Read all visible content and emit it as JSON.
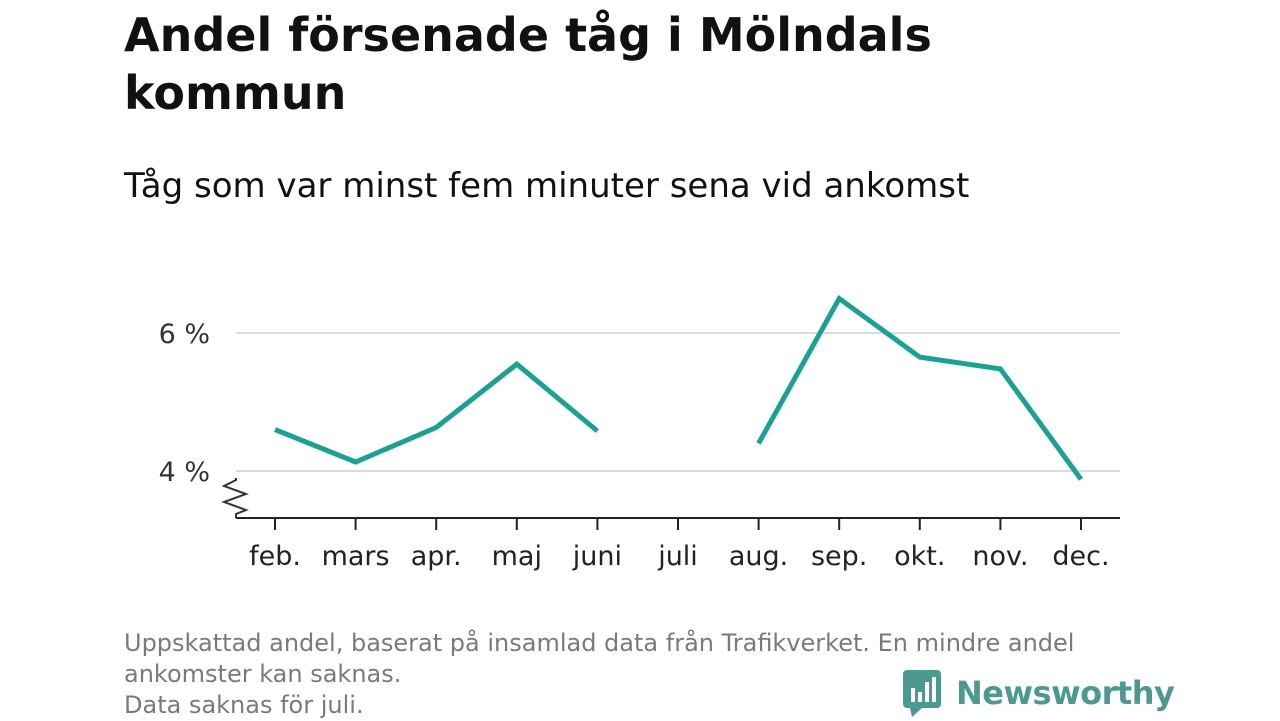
{
  "header": {
    "title": "Andel försenade tåg i Mölndals kommun",
    "subtitle": "Tåg som var minst fem minuter sena vid ankomst"
  },
  "chart_data": {
    "type": "line",
    "categories": [
      "feb.",
      "mars",
      "apr.",
      "maj",
      "juni",
      "juli",
      "aug.",
      "sep.",
      "okt.",
      "nov.",
      "dec."
    ],
    "series": [
      {
        "values": [
          4.6,
          4.13,
          4.63,
          5.55,
          4.58,
          null,
          4.4,
          6.5,
          5.65,
          5.48,
          3.88
        ],
        "color": "#16a394"
      }
    ],
    "ylim": [
      3.3,
      7.0
    ],
    "yticks": [
      4,
      6
    ],
    "ytick_labels": [
      "4 %",
      "6 %"
    ],
    "axis_break": true,
    "grid": "horizontal"
  },
  "footer": {
    "note_line1": "Uppskattad andel, baserat på insamlad data från Trafikverket. En mindre andel",
    "note_line2": "ankomster kan saknas.",
    "note_line3": "Data saknas för juli.",
    "brand": "Newsworthy",
    "brand_color": "#4a9a91",
    "brand_icon": "bar-chart-speech-bubble-icon"
  }
}
